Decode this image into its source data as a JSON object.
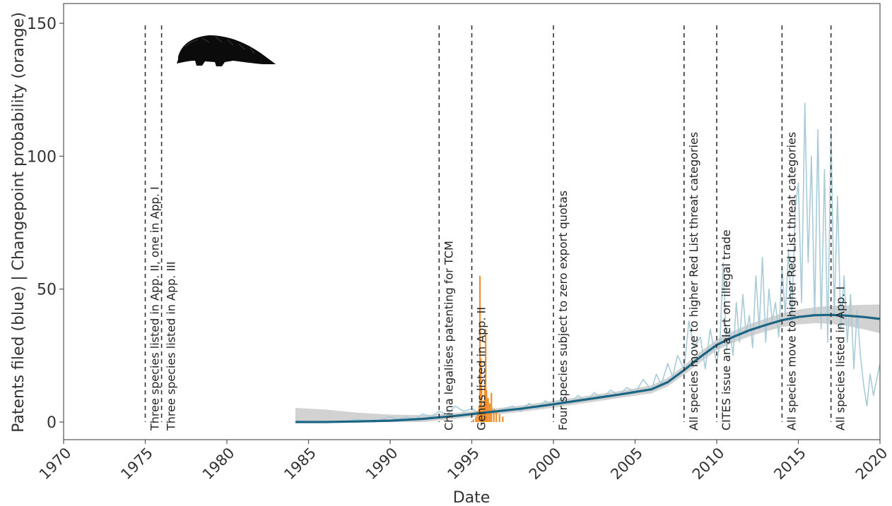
{
  "chart_data": {
    "type": "line",
    "xlabel": "Date",
    "ylabel": "Patents filed (blue) | Changepoint probability (orange)",
    "xlim": [
      1970,
      2020
    ],
    "ylim": [
      0,
      150
    ],
    "x_ticks": [
      {
        "value": 1970,
        "label": "1970"
      },
      {
        "value": 1975,
        "label": "1975"
      },
      {
        "value": 1980,
        "label": "1980"
      },
      {
        "value": 1985,
        "label": "1985"
      },
      {
        "value": 1990,
        "label": "1990"
      },
      {
        "value": 1995,
        "label": "1995"
      },
      {
        "value": 2000,
        "label": "2000"
      },
      {
        "value": 2005,
        "label": "2005"
      },
      {
        "value": 2010,
        "label": "2010"
      },
      {
        "value": 2015,
        "label": "2015"
      },
      {
        "value": 2020,
        "label": "2020"
      }
    ],
    "y_ticks": [
      {
        "value": 0,
        "label": "0"
      },
      {
        "value": 50,
        "label": "50"
      },
      {
        "value": 100,
        "label": "100"
      },
      {
        "value": 150,
        "label": "150"
      }
    ],
    "grid": false,
    "colors": {
      "patents": "#a9cbd8",
      "smooth": "#1b6585",
      "band": "#c3c3c3",
      "changepoint": "#f28e2b",
      "event_line": "#333333"
    },
    "events": [
      {
        "x": 1975.0,
        "label": "Three species listed in App. II, one in App. I"
      },
      {
        "x": 1976.0,
        "label": "Three species listed in App. III"
      },
      {
        "x": 1993.0,
        "label": "China legalises patenting for TCM"
      },
      {
        "x": 1995.0,
        "label": "Genus listed in App. II"
      },
      {
        "x": 2000.0,
        "label": "Four species subject to zero export quotas"
      },
      {
        "x": 2008.0,
        "label": "All species move to higher Red List threat categories"
      },
      {
        "x": 2010.0,
        "label": "CITES issue an alert on illegal trade"
      },
      {
        "x": 2014.0,
        "label": "All species move to higher Red List threat categories"
      },
      {
        "x": 2017.0,
        "label": "All species listed in App. I"
      }
    ],
    "series": [
      {
        "key": "smooth",
        "x": [
          1984.2,
          1986,
          1988,
          1990,
          1992,
          1994,
          1996,
          1998,
          2000,
          2002,
          2004,
          2006,
          2007,
          2008,
          2009,
          2010,
          2011,
          2012,
          2013,
          2014,
          2015,
          2016,
          2017,
          2018,
          2019,
          2020
        ],
        "y": [
          0,
          0,
          0.2,
          0.5,
          1.2,
          2.3,
          3.7,
          5.0,
          6.7,
          8.5,
          10.3,
          12.3,
          15.0,
          19.5,
          24.5,
          29.0,
          32.0,
          34.5,
          36.5,
          38.3,
          39.5,
          40.2,
          40.3,
          40.0,
          39.5,
          38.8
        ]
      },
      {
        "key": "band_upper",
        "x": [
          1984.2,
          1986,
          1988,
          1990,
          1992,
          1994,
          1996,
          1998,
          2000,
          2002,
          2004,
          2006,
          2007,
          2008,
          2009,
          2010,
          2011,
          2012,
          2013,
          2014,
          2015,
          2016,
          2017,
          2018,
          2019,
          2020
        ],
        "y": [
          5.3,
          4.7,
          3.5,
          2.8,
          2.6,
          3.4,
          4.8,
          6.2,
          8.0,
          9.8,
          11.6,
          13.8,
          16.6,
          21.3,
          26.5,
          31.0,
          34.2,
          36.8,
          38.9,
          40.9,
          42.3,
          43.2,
          43.7,
          43.9,
          44.1,
          44.2
        ]
      },
      {
        "key": "band_lower",
        "x": [
          1984.2,
          1986,
          1988,
          1990,
          1992,
          1994,
          1996,
          1998,
          2000,
          2002,
          2004,
          2006,
          2007,
          2008,
          2009,
          2010,
          2011,
          2012,
          2013,
          2014,
          2015,
          2016,
          2017,
          2018,
          2019,
          2020
        ],
        "y": [
          0,
          0,
          0,
          0,
          0,
          1.2,
          2.6,
          3.8,
          5.4,
          7.2,
          9.0,
          10.8,
          13.4,
          17.7,
          22.5,
          27.0,
          29.8,
          32.2,
          34.1,
          35.7,
          36.7,
          37.2,
          36.9,
          36.1,
          34.9,
          33.4
        ]
      },
      {
        "key": "patents",
        "name": "Patents filed",
        "x": [
          1987.0,
          1988.0,
          1989.0,
          1990.0,
          1990.5,
          1991.0,
          1991.5,
          1992.0,
          1992.5,
          1993.0,
          1993.5,
          1994.0,
          1994.5,
          1995.0,
          1995.5,
          1996.0,
          1996.5,
          1997.0,
          1997.5,
          1998.0,
          1998.5,
          1999.0,
          1999.5,
          2000.0,
          2000.5,
          2001.0,
          2001.5,
          2002.0,
          2002.5,
          2003.0,
          2003.5,
          2004.0,
          2004.5,
          2005.0,
          2005.5,
          2006.0,
          2006.3,
          2006.6,
          2007.0,
          2007.3,
          2007.6,
          2008.0,
          2008.3,
          2008.6,
          2009.0,
          2009.3,
          2009.6,
          2010.0,
          2010.2,
          2010.4,
          2010.6,
          2010.8,
          2011.0,
          2011.2,
          2011.4,
          2011.6,
          2011.8,
          2012.0,
          2012.2,
          2012.4,
          2012.6,
          2012.8,
          2013.0,
          2013.2,
          2013.4,
          2013.6,
          2013.8,
          2014.0,
          2014.2,
          2014.4,
          2014.6,
          2014.8,
          2015.0,
          2015.2,
          2015.4,
          2015.6,
          2015.8,
          2016.0,
          2016.2,
          2016.4,
          2016.6,
          2016.8,
          2017.0,
          2017.2,
          2017.4,
          2017.6,
          2017.8,
          2018.0,
          2018.2,
          2018.4,
          2018.6,
          2018.8,
          2019.0,
          2019.2,
          2019.4,
          2019.6,
          2019.8,
          2020.0
        ],
        "y": [
          0,
          1,
          0,
          2,
          1,
          2,
          1,
          3,
          2,
          4,
          3,
          6,
          4,
          5,
          3,
          6,
          4,
          5,
          6,
          4,
          7,
          5,
          8,
          6,
          9,
          7,
          10,
          8,
          11,
          9,
          12,
          10,
          13,
          11,
          16,
          12,
          18,
          14,
          22,
          17,
          25,
          20,
          38,
          28,
          32,
          20,
          35,
          22,
          30,
          60,
          27,
          35,
          25,
          45,
          30,
          48,
          33,
          40,
          28,
          55,
          35,
          62,
          30,
          50,
          38,
          45,
          32,
          58,
          40,
          65,
          38,
          80,
          90,
          45,
          120,
          60,
          100,
          40,
          110,
          35,
          95,
          30,
          110,
          40,
          85,
          35,
          55,
          30,
          48,
          20,
          42,
          25,
          14,
          6,
          18,
          10,
          16,
          22
        ]
      },
      {
        "key": "changepoint",
        "name": "Changepoint probability",
        "x": [
          1995.1,
          1995.25,
          1995.35,
          1995.45,
          1995.5,
          1995.55,
          1995.6,
          1995.65,
          1995.7,
          1995.75,
          1995.8,
          1995.85,
          1995.9,
          1996.0,
          1996.1,
          1996.2,
          1996.35,
          1996.5,
          1996.7,
          1996.9
        ],
        "y": [
          1,
          2,
          4,
          6,
          55,
          24,
          13,
          6,
          4,
          8,
          14,
          35,
          12,
          9,
          7,
          11,
          5,
          4,
          3,
          2
        ]
      }
    ]
  }
}
